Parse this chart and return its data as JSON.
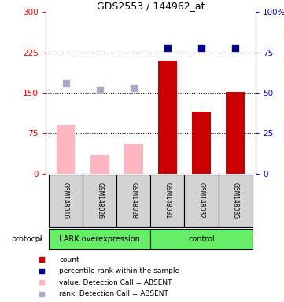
{
  "title": "GDS2553 / 144962_at",
  "samples": [
    "GSM148016",
    "GSM148026",
    "GSM148028",
    "GSM148031",
    "GSM148032",
    "GSM148035"
  ],
  "bar_values": [
    90,
    35,
    55,
    210,
    115,
    152
  ],
  "bar_absent": [
    true,
    true,
    true,
    false,
    false,
    false
  ],
  "rank_values_pct": [
    56,
    52,
    53,
    78,
    78,
    78
  ],
  "rank_absent": [
    true,
    true,
    true,
    false,
    false,
    false
  ],
  "ylim_left": [
    0,
    300
  ],
  "ylim_right": [
    0,
    100
  ],
  "yticks_left": [
    0,
    75,
    150,
    225,
    300
  ],
  "yticks_right": [
    0,
    25,
    50,
    75,
    100
  ],
  "ytick_labels_left": [
    "0",
    "75",
    "150",
    "225",
    "300"
  ],
  "ytick_labels_right": [
    "0",
    "25",
    "50",
    "75",
    "100%"
  ],
  "bar_color_present": "#CC0000",
  "bar_color_absent": "#FFB6C1",
  "rank_color_present": "#00008B",
  "rank_color_absent": "#AAAACC",
  "protocol_label": "protocol",
  "group_label_1": "LARK overexpression",
  "group_label_2": "control",
  "legend": [
    {
      "label": "count",
      "color": "#CC0000"
    },
    {
      "label": "percentile rank within the sample",
      "color": "#00008B"
    },
    {
      "label": "value, Detection Call = ABSENT",
      "color": "#FFB6C1"
    },
    {
      "label": "rank, Detection Call = ABSENT",
      "color": "#AAAACC"
    }
  ]
}
